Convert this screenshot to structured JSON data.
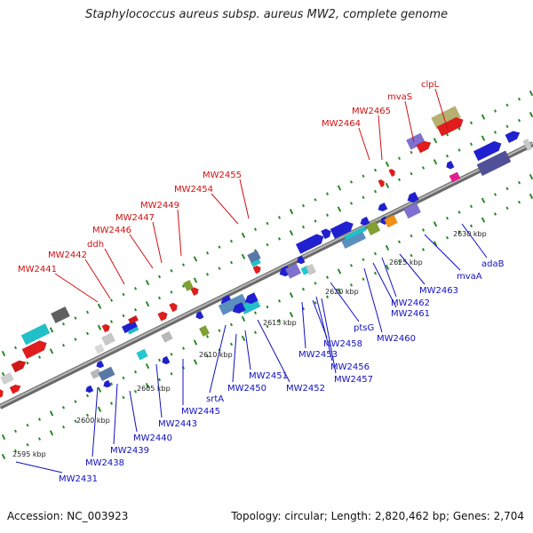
{
  "title": "Staphylococcus aureus subsp. aureus MW2, complete genome",
  "footer": {
    "accession": "Accession: NC_003923",
    "summary": "Topology: circular; Length: 2,820,462 bp; Genes: 2,704"
  },
  "colors": {
    "top_label": "#d01010",
    "bottom_label": "#1010c0",
    "backbone": "#8c8c8c",
    "tick": "#2a8a2a"
  },
  "tick_labels": [
    "2595 kbp",
    "2600 kbp",
    "2605 kbp",
    "2610 kbp",
    "2615 kbp",
    "2620 kbp",
    "2625 kbp",
    "2630 kbp"
  ],
  "top_labels": [
    "MW2441",
    "MW2442",
    "ddh",
    "MW2446",
    "MW2447",
    "MW2449",
    "MW2454",
    "MW2455",
    "MW2464",
    "MW2465",
    "mvaS",
    "clpL"
  ],
  "bottom_labels": [
    "MW2431",
    "MW2438",
    "MW2439",
    "MW2440",
    "MW2443",
    "MW2445",
    "srtA",
    "MW2450",
    "MW2451",
    "MW2452",
    "MW2453",
    "MW2458",
    "MW2456",
    "MW2457",
    "ptsG",
    "MW2460",
    "MW2461",
    "MW2462",
    "MW2463",
    "mvaA",
    "adaB"
  ]
}
